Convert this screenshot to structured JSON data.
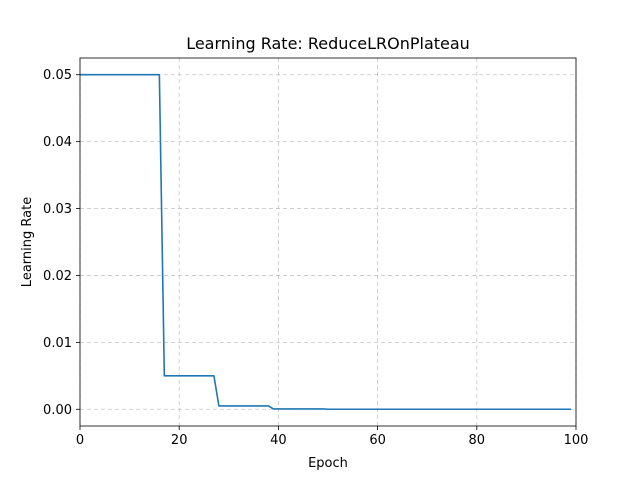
{
  "chart_data": {
    "type": "line",
    "title": "Learning Rate: ReduceLROnPlateau",
    "xlabel": "Epoch",
    "ylabel": "Learning Rate",
    "xlim": [
      0,
      100
    ],
    "ylim": [
      -0.0025,
      0.0525
    ],
    "xticks": [
      0,
      20,
      40,
      60,
      80,
      100
    ],
    "xtick_labels": [
      "0",
      "20",
      "40",
      "60",
      "80",
      "100"
    ],
    "yticks": [
      0.0,
      0.01,
      0.02,
      0.03,
      0.04,
      0.05
    ],
    "ytick_labels": [
      "0.00",
      "0.01",
      "0.02",
      "0.03",
      "0.04",
      "0.05"
    ],
    "grid": true,
    "series": [
      {
        "color": "#1f77b4",
        "x": [
          0,
          16,
          17,
          27,
          28,
          38,
          39,
          49,
          50,
          99
        ],
        "y": [
          0.05,
          0.05,
          0.005,
          0.005,
          0.0005,
          0.0005,
          5e-05,
          5e-05,
          5e-06,
          5e-06
        ]
      }
    ]
  }
}
